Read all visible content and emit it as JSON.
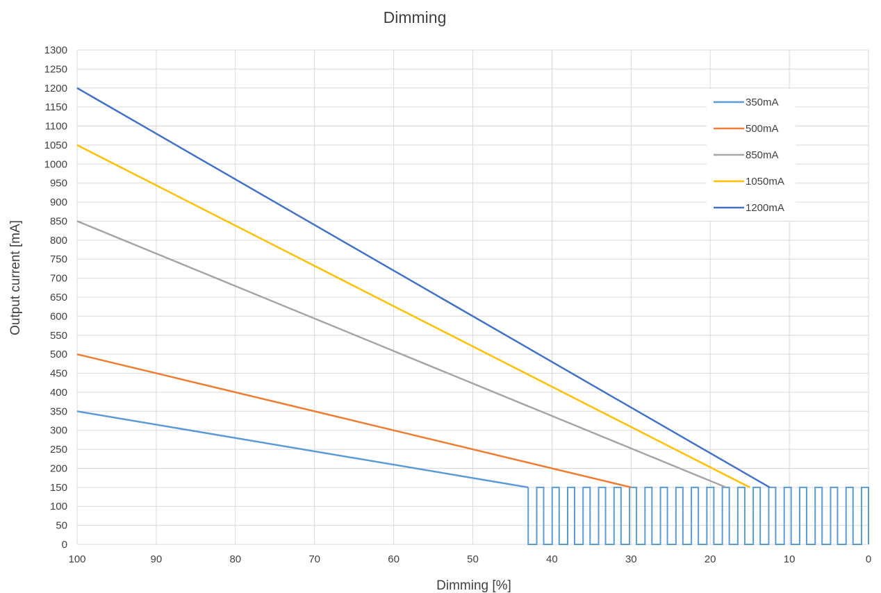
{
  "chart_data": {
    "type": "line",
    "title": "Dimming",
    "xlabel": "Dimming [%]",
    "ylabel": "Output current [mA]",
    "xlim": [
      100,
      0
    ],
    "ylim": [
      0,
      1300
    ],
    "x_reversed": true,
    "x_ticks": [
      "100",
      "90",
      "80",
      "70",
      "60",
      "50",
      "40",
      "30",
      "20",
      "10",
      "0"
    ],
    "y_ticks": [
      "0",
      "50",
      "100",
      "150",
      "200",
      "250",
      "300",
      "350",
      "400",
      "450",
      "500",
      "550",
      "600",
      "650",
      "700",
      "750",
      "800",
      "850",
      "900",
      "950",
      "1000",
      "1050",
      "1100",
      "1150",
      "1200",
      "1250",
      "1300"
    ],
    "grid": true,
    "legend_position": "top-right",
    "series": [
      {
        "name": "350mA",
        "color": "#5b9bd5",
        "x": [
          100,
          43
        ],
        "y": [
          350,
          150
        ]
      },
      {
        "name": "500mA",
        "color": "#ed7d31",
        "x": [
          100,
          30
        ],
        "y": [
          500,
          150
        ]
      },
      {
        "name": "850mA",
        "color": "#a5a5a5",
        "x": [
          100,
          18
        ],
        "y": [
          850,
          150
        ]
      },
      {
        "name": "1050mA",
        "color": "#ffc000",
        "x": [
          100,
          15
        ],
        "y": [
          1050,
          150
        ]
      },
      {
        "name": "1200mA",
        "color": "#4472c4",
        "x": [
          100,
          12.5
        ],
        "y": [
          1200,
          150
        ]
      }
    ],
    "pwm_pulse": {
      "color": "#5b9bd5",
      "x_start": 43,
      "x_end": 0,
      "high": 150,
      "low": 0,
      "periods": 22
    }
  }
}
